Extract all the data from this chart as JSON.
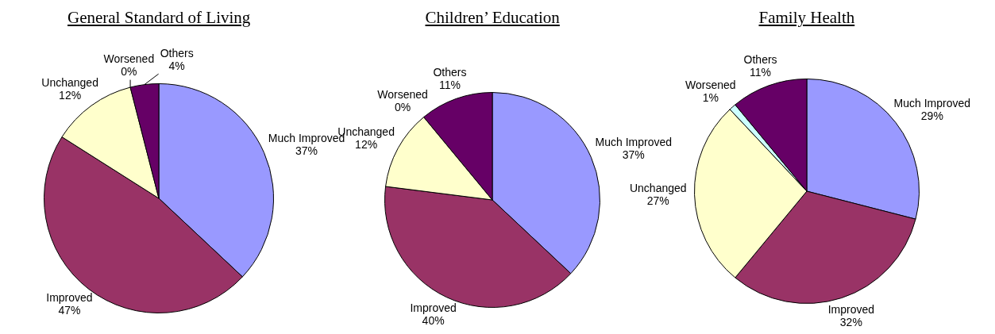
{
  "chart_data": [
    {
      "type": "pie",
      "title": "General Standard of Living",
      "categories": [
        "Much Improved",
        "Improved",
        "Unchanged",
        "Worsened",
        "Others"
      ],
      "values": [
        37,
        47,
        12,
        0,
        4
      ],
      "value_labels": [
        "37%",
        "47%",
        "12%",
        "0%",
        "4%"
      ],
      "colors": [
        "#9999ff",
        "#993366",
        "#ffffcc",
        "#ccffff",
        "#660066"
      ]
    },
    {
      "type": "pie",
      "title": "Children’ Education",
      "categories": [
        "Much Improved",
        "Improved",
        "Unchanged",
        "Worsened",
        "Others"
      ],
      "values": [
        37,
        40,
        12,
        0,
        11
      ],
      "value_labels": [
        "37%",
        "40%",
        "12%",
        "0%",
        "11%"
      ],
      "colors": [
        "#9999ff",
        "#993366",
        "#ffffcc",
        "#ccffff",
        "#660066"
      ]
    },
    {
      "type": "pie",
      "title": "Family Health",
      "categories": [
        "Much Improved",
        "Improved",
        "Unchanged",
        "Worsened",
        "Others"
      ],
      "values": [
        29,
        32,
        27,
        1,
        11
      ],
      "value_labels": [
        "29%",
        "32%",
        "27%",
        "1%",
        "11%"
      ],
      "colors": [
        "#9999ff",
        "#993366",
        "#ffffcc",
        "#ccffff",
        "#660066"
      ]
    }
  ]
}
